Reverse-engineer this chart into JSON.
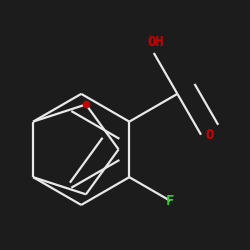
{
  "bg_color": "#1c1c1c",
  "line_color": "#e8e8e8",
  "atom_colors": {
    "O_ring": "#cc0000",
    "O_cooh": "#cc0000",
    "F": "#33cc33"
  },
  "bond_width": 1.6,
  "dbo": 0.025,
  "font_size": 10,
  "font_size_oh": 10
}
